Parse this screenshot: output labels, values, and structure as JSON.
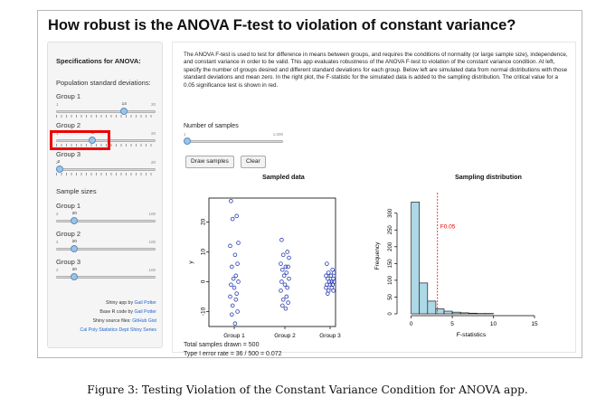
{
  "app": {
    "title": "How robust is the ANOVA F-test to violation of constant variance?"
  },
  "sidebar": {
    "heading": "Specifications for ANOVA:",
    "sd_heading": "Population standard deviations:",
    "sd_sliders": [
      {
        "label": "Group 1",
        "min": "1",
        "max": "20",
        "value": "14",
        "fraction": 0.684
      },
      {
        "label": "Group 2",
        "min": "1",
        "max": "20",
        "value": "8",
        "fraction": 0.368
      },
      {
        "label": "Group 3",
        "min": "2",
        "max": "20",
        "value": "2",
        "fraction": 0.0
      }
    ],
    "size_heading": "Sample sizes",
    "size_sliders": [
      {
        "label": "Group 1",
        "min": "2",
        "max": "100",
        "value": "20",
        "fraction": 0.184
      },
      {
        "label": "Group 2",
        "min": "2",
        "max": "100",
        "value": "20",
        "fraction": 0.184
      },
      {
        "label": "Group 3",
        "min": "2",
        "max": "100",
        "value": "20",
        "fraction": 0.184
      }
    ],
    "credits": {
      "line1_prefix": "Shiny app by ",
      "line1_link": "Gail Potter",
      "line2_prefix": "Base R code by ",
      "line2_link": "Gail Potter",
      "line3_prefix": "Shiny source files: ",
      "line3_link": "GitHub Gist",
      "line4_link": "Cal Poly Statistics Dept Shiny Series"
    }
  },
  "main": {
    "description": "The ANOVA F-test is used to test for difference in means between groups, and requires the conditions of normality (or large sample size), independence, and constant variance in order to be valid. This app evaluates robustness of the ANOVA F-test to violation of the constant variance condition. At left, specify the number of groups desired and different standard deviations for each group. Below left are simulated data from normal distributions with those standard deviations and mean zero. In the right plot, the F-statistic for the simulated data is added to the sampling distribution. The critical value for a 0.05 significance test is shown in red.",
    "num_samples": {
      "label": "Number of samples",
      "min": "1",
      "max": "1,000",
      "value": "1",
      "fraction": 0.0
    },
    "draw_button": "Draw samples",
    "clear_button": "Clear",
    "total_samples": "Total samples drawn = 500",
    "type1_rate": "Type I error rate = 36 / 500 = 0.072"
  },
  "colors": {
    "highlight": "#ee0000",
    "points": "#2b3fb5",
    "hist_fill": "#add8e6",
    "critical_line": "#ee0000",
    "link": "#2266cc"
  },
  "chart_data": [
    {
      "type": "scatter",
      "title": "Sampled data",
      "xlabel": "",
      "ylabel": "y",
      "categories": [
        "Group 1",
        "Group 2",
        "Group 3"
      ],
      "yticks": [
        "-10",
        "0",
        "10",
        "20"
      ],
      "ylim": [
        -15,
        28
      ],
      "series": [
        {
          "values": [
            27,
            22,
            21,
            13,
            12,
            9,
            6,
            5,
            2,
            1,
            0,
            -1,
            -2,
            -4,
            -5,
            -6,
            -8,
            -10,
            -11,
            -14
          ]
        },
        {
          "values": [
            14,
            10,
            9,
            8,
            6,
            5,
            5,
            4,
            3,
            2,
            1,
            0,
            -1,
            -2,
            -3,
            -5,
            -6,
            -7,
            -8,
            -9
          ]
        },
        {
          "values": [
            6,
            4,
            3,
            3,
            2,
            2,
            1,
            1,
            0,
            0,
            0,
            -1,
            -1,
            -1,
            -2,
            -2,
            -3,
            -3,
            -4,
            2
          ]
        }
      ]
    },
    {
      "type": "bar",
      "title": "Sampling distribution",
      "xlabel": "F-statistics",
      "ylabel": "Frequency",
      "xticks": [
        "0",
        "5",
        "10",
        "15"
      ],
      "yticks": [
        "0",
        "50",
        "100",
        "150",
        "200",
        "250",
        "300"
      ],
      "xlim": [
        -1.5,
        15
      ],
      "ylim": [
        0,
        345
      ],
      "bin_width": 1,
      "bin_starts": [
        0,
        1,
        2,
        3,
        4,
        5,
        6,
        7,
        8,
        9
      ],
      "values": [
        333,
        92,
        38,
        15,
        8,
        5,
        3,
        2,
        1,
        1
      ],
      "critical_value": 3.2,
      "critical_label": "F0.05"
    }
  ],
  "caption": "Figure 3: Testing Violation of the Constant Variance Condition for ANOVA app."
}
